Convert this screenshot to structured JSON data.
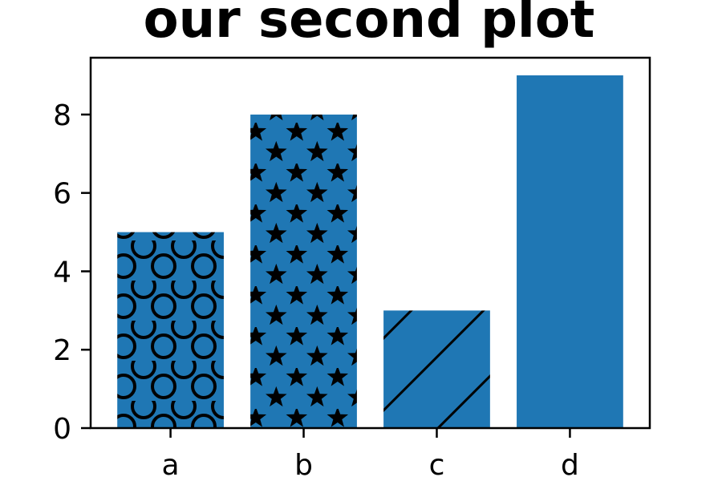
{
  "chart_data": {
    "type": "bar",
    "title": "our second plot",
    "xlabel": "",
    "ylabel": "",
    "categories": [
      "a",
      "b",
      "c",
      "d"
    ],
    "values": [
      5,
      8,
      3,
      9
    ],
    "hatches": [
      "circles",
      "stars",
      "diagonal",
      "none"
    ],
    "bar_color": "#1f77b4",
    "hatch_color": "#000000",
    "ylim": [
      0,
      9.45
    ],
    "yticks": [
      0,
      2,
      4,
      6,
      8
    ],
    "grid": false,
    "legend": "none"
  }
}
